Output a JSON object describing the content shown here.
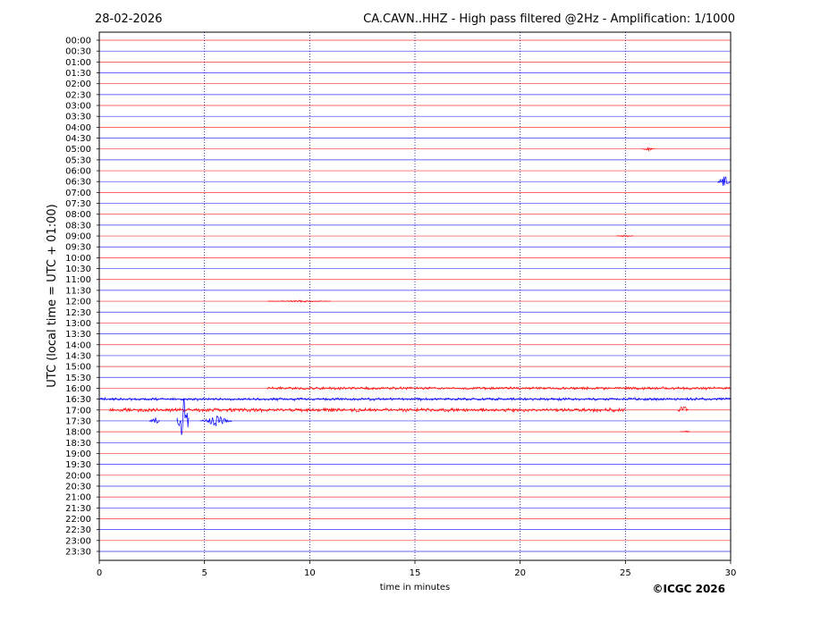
{
  "header": {
    "date": "28-02-2026",
    "title": "CA.CAVN..HHZ - High pass filtered @2Hz - Amplification: 1/1000"
  },
  "copyright": "©ICGC 2026",
  "chart_data": {
    "type": "line",
    "subtype": "helicorder",
    "xlabel": "time in minutes",
    "ylabel": "UTC (local time = UTC + 01:00)",
    "xlim": [
      0,
      30
    ],
    "xticks": [
      0,
      5,
      10,
      15,
      20,
      25,
      30
    ],
    "x_gridlines": [
      5,
      10,
      15,
      20,
      25
    ],
    "grid_style": "vertical dotted",
    "row_labels": [
      "00:00",
      "00:30",
      "01:00",
      "01:30",
      "02:00",
      "02:30",
      "03:00",
      "03:30",
      "04:00",
      "04:30",
      "05:00",
      "05:30",
      "06:00",
      "06:30",
      "07:00",
      "07:30",
      "08:00",
      "08:30",
      "09:00",
      "09:30",
      "10:00",
      "10:30",
      "11:00",
      "11:30",
      "12:00",
      "12:30",
      "13:00",
      "13:30",
      "14:00",
      "14:30",
      "15:00",
      "15:30",
      "16:00",
      "16:30",
      "17:00",
      "17:30",
      "18:00",
      "18:30",
      "19:00",
      "19:30",
      "20:00",
      "20:30",
      "21:00",
      "21:30",
      "22:00",
      "22:30",
      "23:00",
      "23:30"
    ],
    "row_colors": [
      "#ff0000",
      "#0000ff"
    ],
    "row_colors_note": "alternating red/blue starting with red at 00:00",
    "events": [
      {
        "row": "05:00",
        "minute": 25.8,
        "amplitude": 0.15,
        "duration": 0.6
      },
      {
        "row": "06:30",
        "minute": 29.4,
        "amplitude": 0.6,
        "duration": 0.7
      },
      {
        "row": "09:00",
        "minute": 24.6,
        "amplitude": 0.15,
        "duration": 0.8
      },
      {
        "row": "12:00",
        "minute": 8.0,
        "amplitude": 0.1,
        "duration": 3.0
      },
      {
        "row": "16:00",
        "minute": 8.0,
        "amplitude": 0.15,
        "duration": 22.0
      },
      {
        "row": "16:30",
        "minute": 0.0,
        "amplitude": 0.15,
        "duration": 30.0
      },
      {
        "row": "17:00",
        "minute": 0.5,
        "amplitude": 0.2,
        "duration": 24.5
      },
      {
        "row": "17:00",
        "minute": 27.5,
        "amplitude": 0.5,
        "duration": 0.5
      },
      {
        "row": "17:30",
        "minute": 2.4,
        "amplitude": 0.4,
        "duration": 0.5
      },
      {
        "row": "17:30",
        "minute": 3.7,
        "amplitude": 2.2,
        "duration": 0.6
      },
      {
        "row": "17:30",
        "minute": 4.8,
        "amplitude": 0.5,
        "duration": 1.5
      },
      {
        "row": "18:00",
        "minute": 27.6,
        "amplitude": 0.1,
        "duration": 0.5
      }
    ]
  }
}
